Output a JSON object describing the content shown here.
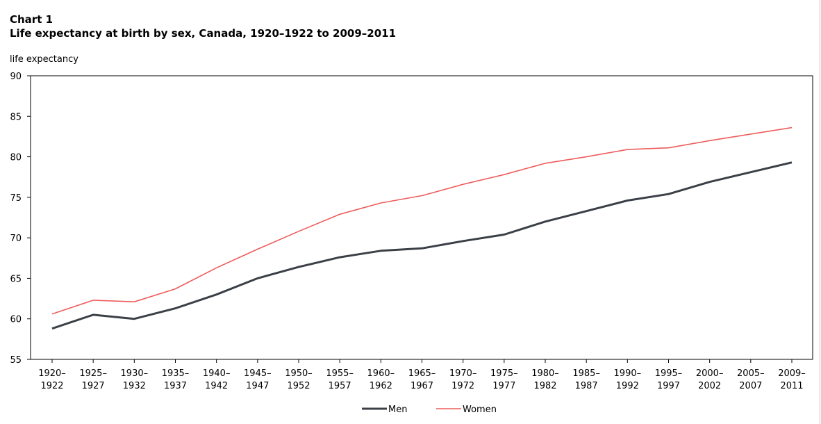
{
  "header": {
    "chart_label": "Chart 1",
    "title": "Life expectancy at birth  by sex, Canada, 1920–1922  to 2009–2011"
  },
  "chart_data": {
    "type": "line",
    "title": "Life expectancy at birth  by sex, Canada, 1920–1922  to 2009–2011",
    "ylabel": "life expectancy",
    "xlabel": "",
    "ylim": [
      55,
      90
    ],
    "yticks": [
      55,
      60,
      65,
      70,
      75,
      80,
      85,
      90
    ],
    "grid": false,
    "legend_position": "bottom-center",
    "categories": [
      [
        "1920–",
        "1922"
      ],
      [
        "1925–",
        "1927"
      ],
      [
        "1930–",
        "1932"
      ],
      [
        "1935–",
        "1937"
      ],
      [
        "1940–",
        "1942"
      ],
      [
        "1945–",
        "1947"
      ],
      [
        "1950–",
        "1952"
      ],
      [
        "1955–",
        "1957"
      ],
      [
        "1960–",
        "1962"
      ],
      [
        "1965–",
        "1967"
      ],
      [
        "1970–",
        "1972"
      ],
      [
        "1975–",
        "1977"
      ],
      [
        "1980–",
        "1982"
      ],
      [
        "1985–",
        "1987"
      ],
      [
        "1990–",
        "1992"
      ],
      [
        "1995–",
        "1997"
      ],
      [
        "2000–",
        "2002"
      ],
      [
        "2005–",
        "2007"
      ],
      [
        "2009–",
        "2011"
      ]
    ],
    "series": [
      {
        "name": "Men",
        "color": "#3b4047",
        "values": [
          58.8,
          60.5,
          60.0,
          61.3,
          63.0,
          65.0,
          66.4,
          67.6,
          68.4,
          68.7,
          69.6,
          70.4,
          72.0,
          73.3,
          74.6,
          75.4,
          76.9,
          78.1,
          79.3
        ]
      },
      {
        "name": "Women",
        "color": "#ee5c5c",
        "values": [
          60.6,
          62.3,
          62.1,
          63.7,
          66.3,
          68.6,
          70.8,
          72.9,
          74.3,
          75.2,
          76.6,
          77.8,
          79.2,
          80.0,
          80.9,
          81.1,
          82.0,
          82.8,
          83.6
        ]
      }
    ]
  }
}
